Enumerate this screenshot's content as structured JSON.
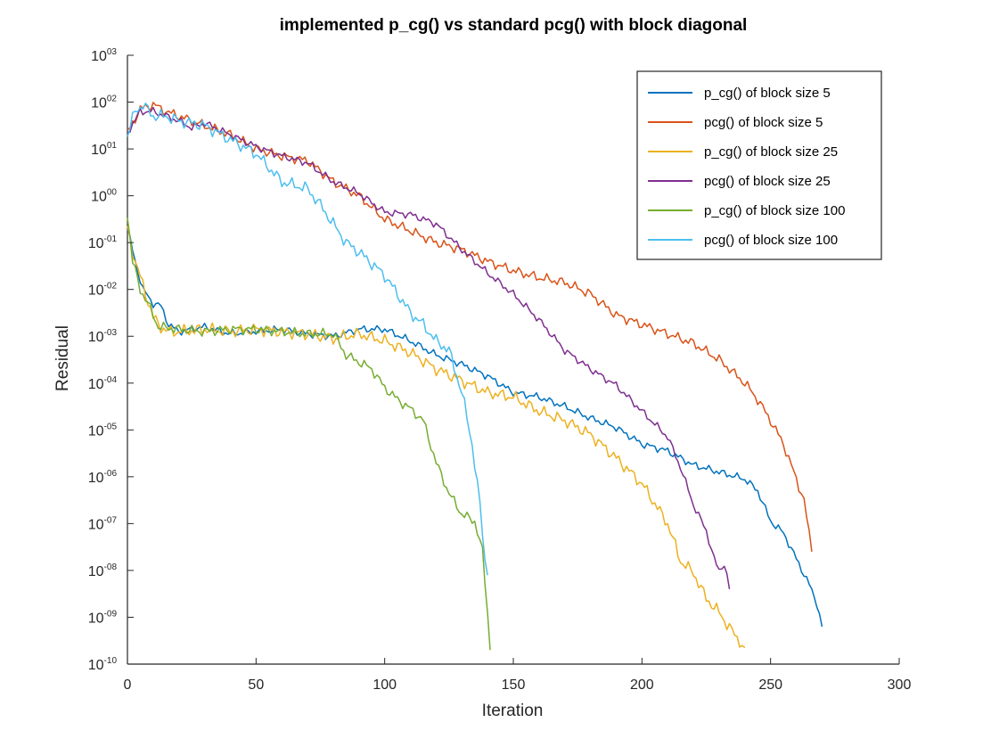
{
  "chart_data": {
    "type": "line",
    "title": "implemented p_cg() vs standard pcg() with block diagonal",
    "xlabel": "Iteration",
    "ylabel": "Residual",
    "xlim": [
      0,
      300
    ],
    "ylim_log10": [
      -10,
      3
    ],
    "y_scale": "log",
    "x_ticks": [
      "0",
      "50",
      "100",
      "150",
      "200",
      "250",
      "300"
    ],
    "y_ticks": [
      {
        "base": "10",
        "exp": "03"
      },
      {
        "base": "10",
        "exp": "02"
      },
      {
        "base": "10",
        "exp": "01"
      },
      {
        "base": "10",
        "exp": "00"
      },
      {
        "base": "10",
        "exp": "-01"
      },
      {
        "base": "10",
        "exp": "-02"
      },
      {
        "base": "10",
        "exp": "-03"
      },
      {
        "base": "10",
        "exp": "-04"
      },
      {
        "base": "10",
        "exp": "-05"
      },
      {
        "base": "10",
        "exp": "-06"
      },
      {
        "base": "10",
        "exp": "-07"
      },
      {
        "base": "10",
        "exp": "-08"
      },
      {
        "base": "10",
        "exp": "-09"
      },
      {
        "base": "10",
        "exp": "-10"
      }
    ],
    "grid": false,
    "legend_position": "top-right",
    "series": [
      {
        "name": "p_cg() of block size 5",
        "color": "#0072BD",
        "points": [
          [
            0,
            -0.7
          ],
          [
            3,
            -1.4
          ],
          [
            6,
            -2.0
          ],
          [
            10,
            -2.3
          ],
          [
            13,
            -2.35
          ],
          [
            16,
            -2.75
          ],
          [
            20,
            -2.9
          ],
          [
            30,
            -2.8
          ],
          [
            40,
            -2.95
          ],
          [
            50,
            -2.9
          ],
          [
            60,
            -2.85
          ],
          [
            70,
            -2.95
          ],
          [
            80,
            -3.0
          ],
          [
            90,
            -2.85
          ],
          [
            100,
            -2.85
          ],
          [
            110,
            -3.1
          ],
          [
            120,
            -3.4
          ],
          [
            130,
            -3.6
          ],
          [
            140,
            -3.85
          ],
          [
            150,
            -4.2
          ],
          [
            160,
            -4.3
          ],
          [
            170,
            -4.5
          ],
          [
            180,
            -4.75
          ],
          [
            190,
            -4.95
          ],
          [
            200,
            -5.3
          ],
          [
            210,
            -5.45
          ],
          [
            220,
            -5.75
          ],
          [
            230,
            -5.9
          ],
          [
            240,
            -6.05
          ],
          [
            245,
            -6.3
          ],
          [
            250,
            -6.95
          ],
          [
            255,
            -7.2
          ],
          [
            260,
            -7.75
          ],
          [
            265,
            -8.3
          ],
          [
            268,
            -8.7
          ],
          [
            270,
            -9.2
          ]
        ]
      },
      {
        "name": "pcg() of block size 5",
        "color": "#D95319",
        "points": [
          [
            0,
            1.35
          ],
          [
            5,
            1.85
          ],
          [
            10,
            1.95
          ],
          [
            15,
            1.8
          ],
          [
            20,
            1.7
          ],
          [
            25,
            1.6
          ],
          [
            30,
            1.5
          ],
          [
            40,
            1.3
          ],
          [
            50,
            1.0
          ],
          [
            60,
            0.85
          ],
          [
            70,
            0.75
          ],
          [
            80,
            0.3
          ],
          [
            90,
            0.0
          ],
          [
            100,
            -0.5
          ],
          [
            110,
            -0.75
          ],
          [
            120,
            -1.0
          ],
          [
            130,
            -1.15
          ],
          [
            140,
            -1.4
          ],
          [
            150,
            -1.6
          ],
          [
            160,
            -1.75
          ],
          [
            170,
            -1.85
          ],
          [
            180,
            -2.1
          ],
          [
            190,
            -2.55
          ],
          [
            200,
            -2.75
          ],
          [
            210,
            -2.95
          ],
          [
            220,
            -3.15
          ],
          [
            230,
            -3.5
          ],
          [
            240,
            -4.0
          ],
          [
            245,
            -4.35
          ],
          [
            250,
            -4.8
          ],
          [
            255,
            -5.3
          ],
          [
            260,
            -6.05
          ],
          [
            263,
            -6.5
          ],
          [
            266,
            -7.6
          ]
        ]
      },
      {
        "name": "p_cg() of block size 25",
        "color": "#EDB120",
        "points": [
          [
            0,
            -0.7
          ],
          [
            3,
            -1.4
          ],
          [
            6,
            -1.9
          ],
          [
            10,
            -2.6
          ],
          [
            13,
            -2.8
          ],
          [
            16,
            -2.9
          ],
          [
            20,
            -2.9
          ],
          [
            30,
            -2.85
          ],
          [
            40,
            -2.9
          ],
          [
            50,
            -2.85
          ],
          [
            60,
            -2.9
          ],
          [
            70,
            -2.95
          ],
          [
            80,
            -3.05
          ],
          [
            90,
            -2.95
          ],
          [
            100,
            -3.1
          ],
          [
            110,
            -3.35
          ],
          [
            120,
            -3.7
          ],
          [
            130,
            -3.95
          ],
          [
            140,
            -4.2
          ],
          [
            150,
            -4.3
          ],
          [
            160,
            -4.6
          ],
          [
            170,
            -4.8
          ],
          [
            180,
            -5.1
          ],
          [
            190,
            -5.6
          ],
          [
            200,
            -6.15
          ],
          [
            210,
            -7.0
          ],
          [
            215,
            -7.8
          ],
          [
            220,
            -8.05
          ],
          [
            225,
            -8.6
          ],
          [
            230,
            -8.9
          ],
          [
            235,
            -9.3
          ],
          [
            240,
            -9.65
          ]
        ]
      },
      {
        "name": "pcg() of block size 25",
        "color": "#7E2F8E",
        "points": [
          [
            0,
            1.35
          ],
          [
            5,
            1.8
          ],
          [
            10,
            1.8
          ],
          [
            15,
            1.7
          ],
          [
            20,
            1.6
          ],
          [
            25,
            1.45
          ],
          [
            30,
            1.55
          ],
          [
            40,
            1.3
          ],
          [
            50,
            1.05
          ],
          [
            60,
            0.85
          ],
          [
            70,
            0.7
          ],
          [
            80,
            0.3
          ],
          [
            90,
            0.05
          ],
          [
            100,
            -0.35
          ],
          [
            110,
            -0.4
          ],
          [
            115,
            -0.5
          ],
          [
            120,
            -0.6
          ],
          [
            130,
            -1.15
          ],
          [
            140,
            -1.65
          ],
          [
            150,
            -2.1
          ],
          [
            160,
            -2.65
          ],
          [
            170,
            -3.3
          ],
          [
            180,
            -3.7
          ],
          [
            190,
            -4.05
          ],
          [
            200,
            -4.6
          ],
          [
            210,
            -5.15
          ],
          [
            215,
            -5.8
          ],
          [
            220,
            -6.6
          ],
          [
            225,
            -7.15
          ],
          [
            228,
            -7.75
          ],
          [
            230,
            -8.0
          ],
          [
            232,
            -7.85
          ],
          [
            234,
            -8.4
          ]
        ]
      },
      {
        "name": "p_cg() of block size 100",
        "color": "#77AC30",
        "points": [
          [
            0,
            -0.4
          ],
          [
            2,
            -1.4
          ],
          [
            5,
            -2.0
          ],
          [
            8,
            -2.3
          ],
          [
            12,
            -2.8
          ],
          [
            20,
            -2.85
          ],
          [
            30,
            -2.9
          ],
          [
            40,
            -2.85
          ],
          [
            50,
            -2.85
          ],
          [
            60,
            -2.9
          ],
          [
            70,
            -2.95
          ],
          [
            80,
            -2.95
          ],
          [
            85,
            -3.4
          ],
          [
            90,
            -3.55
          ],
          [
            95,
            -3.7
          ],
          [
            100,
            -4.1
          ],
          [
            105,
            -4.35
          ],
          [
            110,
            -4.55
          ],
          [
            115,
            -4.8
          ],
          [
            120,
            -5.7
          ],
          [
            125,
            -6.35
          ],
          [
            130,
            -6.8
          ],
          [
            135,
            -6.95
          ],
          [
            138,
            -7.6
          ],
          [
            140,
            -8.9
          ],
          [
            141,
            -9.7
          ]
        ]
      },
      {
        "name": "pcg() of block size 100",
        "color": "#4DBEEE",
        "points": [
          [
            0,
            1.3
          ],
          [
            3,
            1.8
          ],
          [
            6,
            1.95
          ],
          [
            10,
            1.7
          ],
          [
            15,
            1.7
          ],
          [
            20,
            1.6
          ],
          [
            30,
            1.5
          ],
          [
            40,
            1.2
          ],
          [
            50,
            0.9
          ],
          [
            55,
            0.6
          ],
          [
            60,
            0.3
          ],
          [
            70,
            0.15
          ],
          [
            75,
            -0.2
          ],
          [
            80,
            -0.6
          ],
          [
            85,
            -1.0
          ],
          [
            90,
            -1.2
          ],
          [
            100,
            -1.7
          ],
          [
            110,
            -2.5
          ],
          [
            115,
            -2.75
          ],
          [
            120,
            -3.1
          ],
          [
            125,
            -3.3
          ],
          [
            130,
            -4.2
          ],
          [
            134,
            -5.3
          ],
          [
            137,
            -6.6
          ],
          [
            139,
            -7.8
          ],
          [
            140,
            -8.1
          ]
        ]
      }
    ]
  }
}
